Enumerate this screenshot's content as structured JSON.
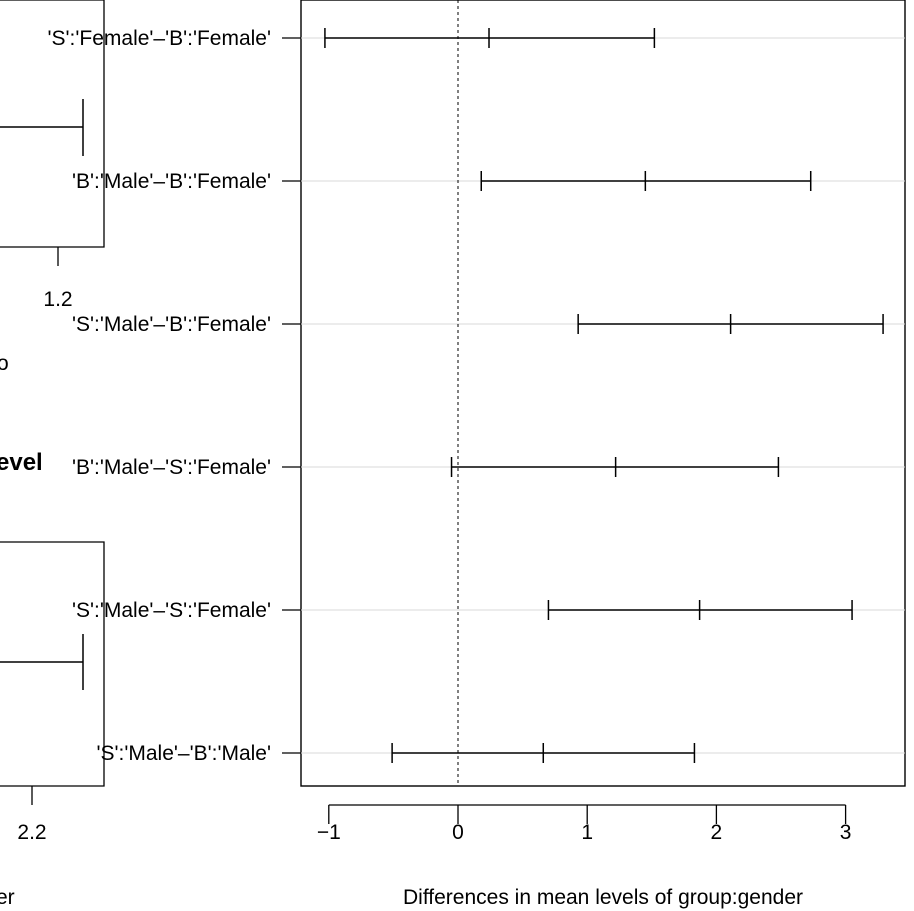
{
  "chart_data": [
    {
      "type": "errorbar",
      "xlabel": "Differences in mean levels of group:gender",
      "xlim": [
        -1.2,
        3.35
      ],
      "x_ticks": [
        "−1",
        "0",
        "1",
        "2",
        "3"
      ],
      "x_tick_values": [
        -1,
        0,
        1,
        2,
        3
      ],
      "reference_line": 0,
      "grid": true,
      "comparisons": [
        {
          "label": "'S':'Female'–'B':'Female'",
          "lwr": -1.03,
          "diff": 0.24,
          "upr": 1.52
        },
        {
          "label": "'B':'Male'–'B':'Female'",
          "lwr": 0.18,
          "diff": 1.45,
          "upr": 2.73
        },
        {
          "label": "'S':'Male'–'B':'Female'",
          "lwr": 0.93,
          "diff": 2.11,
          "upr": 3.29
        },
        {
          "label": "'B':'Male'–'S':'Female'",
          "lwr": -0.05,
          "diff": 1.22,
          "upr": 2.48
        },
        {
          "label": "'S':'Male'–'S':'Female'",
          "lwr": 0.7,
          "diff": 1.87,
          "upr": 3.05
        },
        {
          "label": "'S':'Male'–'B':'Male'",
          "lwr": -0.51,
          "diff": 0.66,
          "upr": 1.83
        }
      ]
    },
    {
      "type": "errorbar",
      "note": "partially visible panel behind, cropped on left",
      "x_ticks": [
        "1.2"
      ],
      "xlabel_fragment": "o"
    },
    {
      "type": "errorbar",
      "note": "partially visible panel behind, cropped on left",
      "title_fragment": "evel",
      "x_ticks": [
        "2.2"
      ],
      "xlabel_fragment": "er"
    }
  ]
}
